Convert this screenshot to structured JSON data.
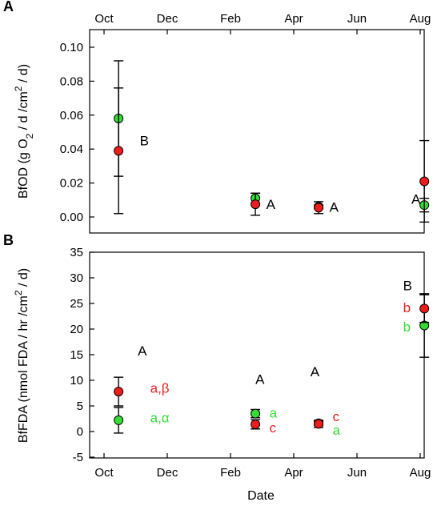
{
  "chart_data": [
    {
      "panel": "A",
      "type": "scatter",
      "ylabel_parts": {
        "a": "BfOD (g O",
        "sub1": "2",
        "b": " / d /cm",
        "sup": "2",
        "c": " / d)"
      },
      "x_ticks": [
        "Oct",
        "Dec",
        "Feb",
        "Apr",
        "Jun",
        "Aug"
      ],
      "x_ticks_position": "top",
      "ylim": [
        0,
        0.1
      ],
      "y_ticks": [
        "0.00",
        "0.02",
        "0.04",
        "0.06",
        "0.08",
        "0.10"
      ],
      "colors": {
        "red": "#ee1c1c",
        "green": "#33dd33"
      },
      "series": [
        {
          "color": "green",
          "points": [
            {
              "x": "Oct 15",
              "y": 0.058,
              "err": 0.034
            },
            {
              "x": "Feb 25",
              "y": 0.011,
              "err": 0.003
            },
            {
              "x": "Apr 25",
              "y": 0.006,
              "err": 0.001
            },
            {
              "x": "Aug 5",
              "y": 0.007,
              "err": 0.004
            }
          ]
        },
        {
          "color": "red",
          "points": [
            {
              "x": "Oct 15",
              "y": 0.039,
              "err": 0.037
            },
            {
              "x": "Feb 25",
              "y": 0.0075,
              "err": 0.0065
            },
            {
              "x": "Apr 25",
              "y": 0.0055,
              "err": 0.0035
            },
            {
              "x": "Aug 5",
              "y": 0.021,
              "err": 0.024
            }
          ]
        }
      ],
      "annotations": [
        {
          "text": "B",
          "x": "Nov 5",
          "y": 0.045,
          "color": "black"
        },
        {
          "text": "A",
          "x": "Mar 5",
          "y": 0.0075,
          "color": "black"
        },
        {
          "text": "A",
          "x": "May 5",
          "y": 0.0058,
          "color": "black"
        },
        {
          "text": "A",
          "x": "Jul 23",
          "y": 0.0105,
          "color": "black"
        }
      ]
    },
    {
      "panel": "B",
      "type": "scatter",
      "ylabel_parts": {
        "a": "BfFDA (nmol FDA / hr /cm",
        "sup": "2",
        "c": " / d)"
      },
      "xlabel": "Date",
      "x_ticks": [
        "Oct",
        "Dec",
        "Feb",
        "Apr",
        "Jun",
        "Aug"
      ],
      "x_ticks_position": "bottom",
      "ylim": [
        -5,
        35
      ],
      "y_ticks": [
        "-5",
        "0",
        "5",
        "10",
        "15",
        "20",
        "25",
        "30",
        "35"
      ],
      "colors": {
        "red": "#ee1c1c",
        "green": "#33dd33"
      },
      "series": [
        {
          "color": "green",
          "points": [
            {
              "x": "Oct 15",
              "y": 2.2,
              "err": 2.5
            },
            {
              "x": "Feb 25",
              "y": 3.5,
              "err": 0.8
            },
            {
              "x": "Apr 25",
              "y": 1.6,
              "err": 0.4
            },
            {
              "x": "Aug 5",
              "y": 20.7,
              "err": 6.2
            }
          ]
        },
        {
          "color": "red",
          "points": [
            {
              "x": "Oct 15",
              "y": 7.8,
              "err": 2.8
            },
            {
              "x": "Feb 25",
              "y": 1.4,
              "err": 0.9
            },
            {
              "x": "Apr 25",
              "y": 1.5,
              "err": 0.7
            },
            {
              "x": "Aug 5",
              "y": 24.0,
              "err": 2.7
            }
          ]
        }
      ],
      "annotations": [
        {
          "text": "A",
          "x": "Nov 3",
          "y": 15.8,
          "color": "black"
        },
        {
          "text": "a,β",
          "x": "Nov 15",
          "y": 8.5,
          "color": "red"
        },
        {
          "text": "a,α",
          "x": "Nov 15",
          "y": 2.7,
          "color": "green"
        },
        {
          "text": "A",
          "x": "Feb 25",
          "y": 10.2,
          "color": "black"
        },
        {
          "text": "a",
          "x": "Mar 8",
          "y": 3.7,
          "color": "green"
        },
        {
          "text": "c",
          "x": "Mar 8",
          "y": 0.8,
          "color": "red"
        },
        {
          "text": "A",
          "x": "Apr 17",
          "y": 11.7,
          "color": "black"
        },
        {
          "text": "c",
          "x": "May 8",
          "y": 3.0,
          "color": "red"
        },
        {
          "text": "a",
          "x": "May 8",
          "y": 0.3,
          "color": "green"
        },
        {
          "text": "B",
          "x": "Jul 15",
          "y": 28.5,
          "color": "black"
        },
        {
          "text": "b",
          "x": "Jul 15",
          "y": 24.2,
          "color": "red"
        },
        {
          "text": "b",
          "x": "Jul 15",
          "y": 20.5,
          "color": "green"
        }
      ]
    }
  ]
}
